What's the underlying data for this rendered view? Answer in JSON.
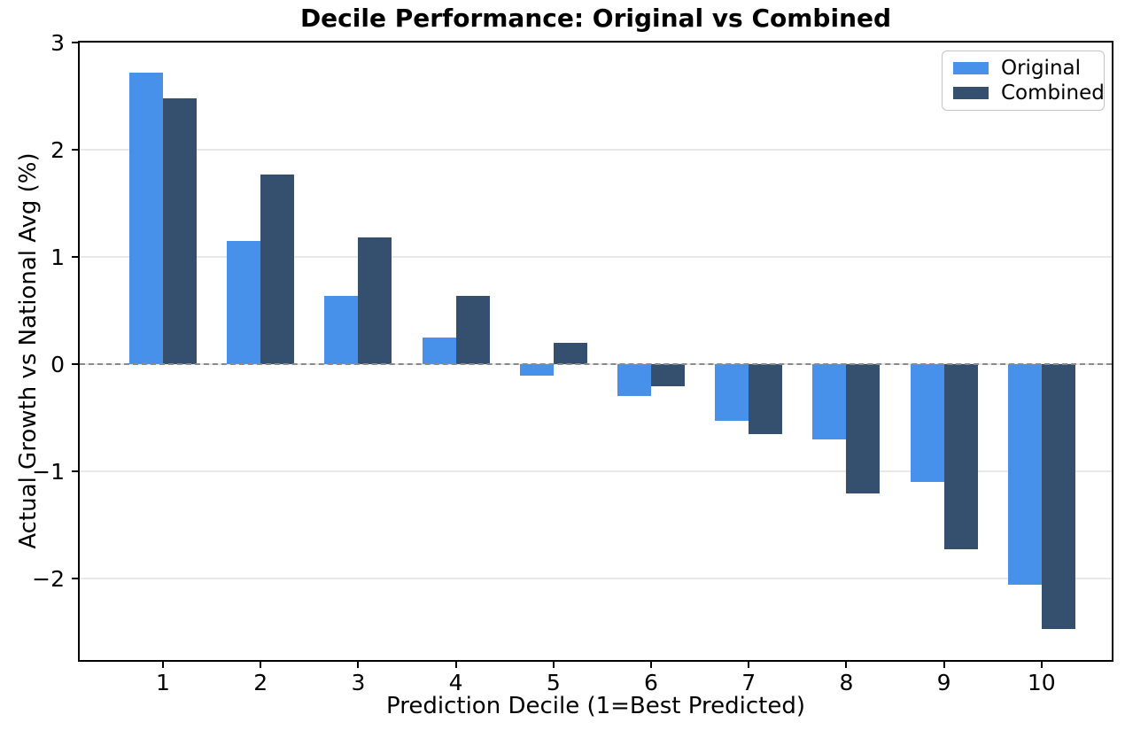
{
  "figure": {
    "title": "Decile Performance: Original vs Combined",
    "xlabel": "Prediction Decile (1=Best Predicted)",
    "ylabel": "Actual Growth vs National Avg (%)"
  },
  "legend": {
    "position": "upper right",
    "items": [
      {
        "label": "Original",
        "color": "#4791EB"
      },
      {
        "label": "Combined",
        "color": "#35506E"
      }
    ]
  },
  "chart_data": {
    "type": "bar",
    "title": "Decile Performance: Original vs Combined",
    "xlabel": "Prediction Decile (1=Best Predicted)",
    "ylabel": "Actual Growth vs National Avg (%)",
    "categories": [
      "1",
      "2",
      "3",
      "4",
      "5",
      "6",
      "7",
      "8",
      "9",
      "10"
    ],
    "series": [
      {
        "name": "Original",
        "color": "#4791EB",
        "values": [
          2.72,
          1.15,
          0.64,
          0.25,
          -0.11,
          -0.3,
          -0.53,
          -0.7,
          -1.1,
          -2.06
        ]
      },
      {
        "name": "Combined",
        "color": "#35506E",
        "values": [
          2.48,
          1.77,
          1.18,
          0.64,
          0.2,
          -0.21,
          -0.65,
          -1.21,
          -1.73,
          -2.47
        ]
      }
    ],
    "ylim": [
      -2.76,
      3.0
    ],
    "yticks": [
      3,
      2,
      1,
      0,
      -1,
      -2
    ],
    "grid": "horizontal",
    "zero_line": "dashed",
    "legend_position": "upper right"
  }
}
